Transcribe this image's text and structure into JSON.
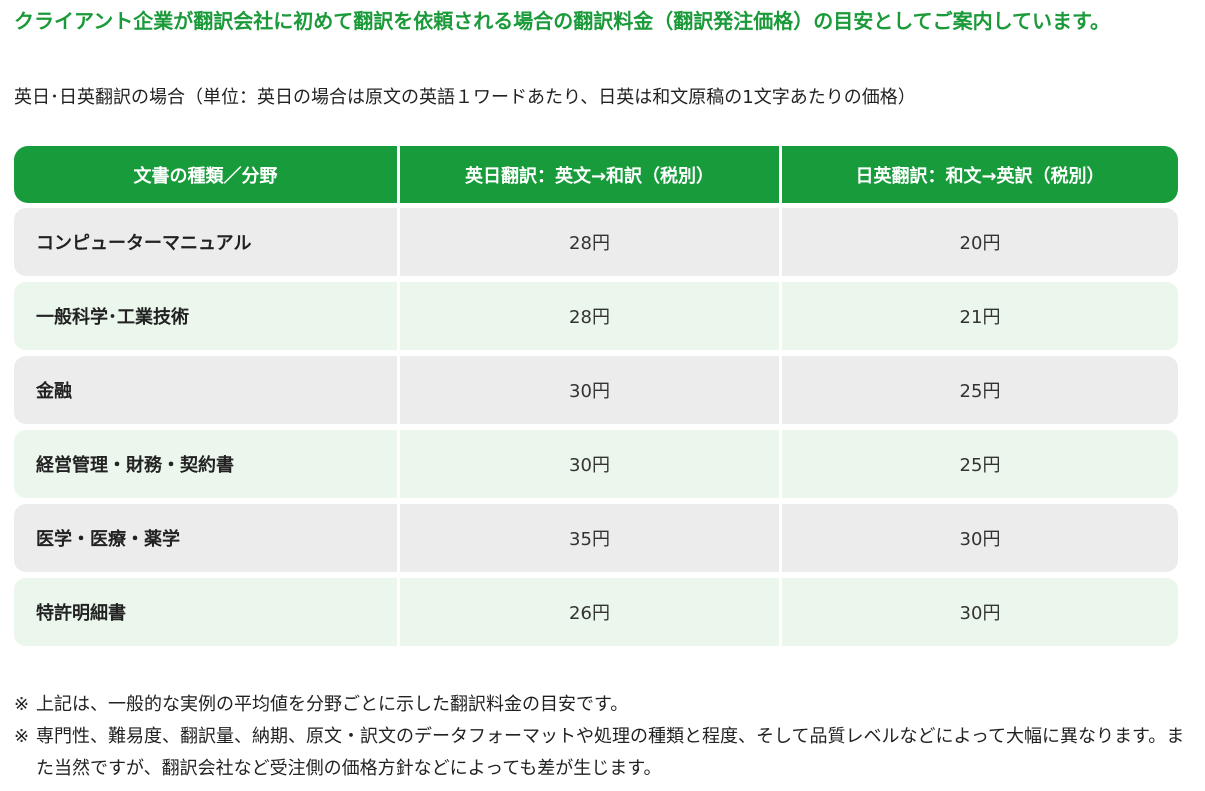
{
  "headline": "クライアント企業が翻訳会社に初めて翻訳を依頼される場合の翻訳料金（翻訳発注価格）の目安としてご案内しています。",
  "subtitle": "英日･日英翻訳の場合（単位：英日の場合は原文の英語１ワードあたり、日英は和文原稿の1文字あたりの価格）",
  "colors": {
    "accent": "#179b3b",
    "headline": "#1b9a3a",
    "row_gray": "#ececec",
    "row_green": "#ebf6ec"
  },
  "table": {
    "headers": [
      "文書の種類／分野",
      "英日翻訳：英文→和訳（税別）",
      "日英翻訳：和文→英訳（税別）"
    ],
    "rows": [
      {
        "field": "コンピューターマニュアル",
        "en_ja": "28円",
        "ja_en": "20円"
      },
      {
        "field": "一般科学･工業技術",
        "en_ja": "28円",
        "ja_en": "21円"
      },
      {
        "field": "金融",
        "en_ja": "30円",
        "ja_en": "25円"
      },
      {
        "field": "経営管理・財務・契約書",
        "en_ja": "30円",
        "ja_en": "25円"
      },
      {
        "field": "医学・医療・薬学",
        "en_ja": "35円",
        "ja_en": "30円"
      },
      {
        "field": "特許明細書",
        "en_ja": "26円",
        "ja_en": "30円"
      }
    ]
  },
  "notes": [
    {
      "mark": "※",
      "text": "上記は、一般的な実例の平均値を分野ごとに示した翻訳料金の目安です。"
    },
    {
      "mark": "※",
      "text": "専門性、難易度、翻訳量、納期、原文・訳文のデータフォーマットや処理の種類と程度、そして品質レベルなどによって大幅に異なります。また当然ですが、翻訳会社など受注側の価格方針などによっても差が生じます。"
    }
  ]
}
